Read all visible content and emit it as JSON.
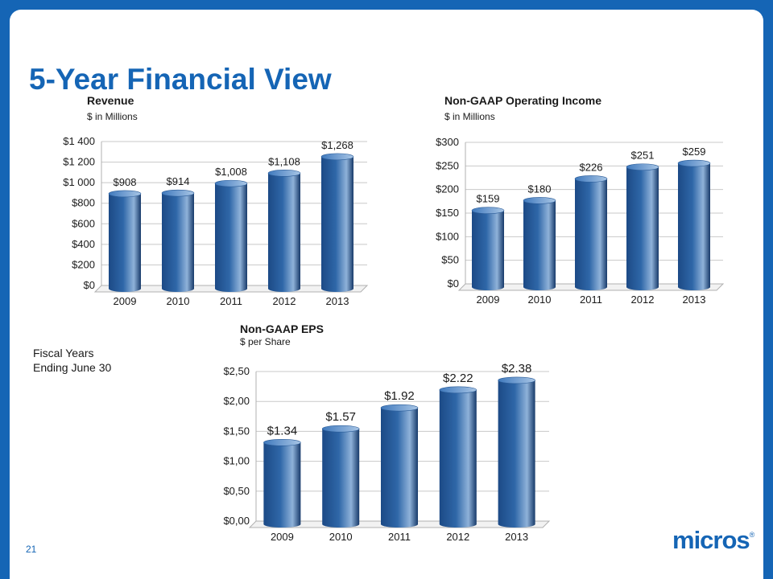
{
  "slide": {
    "title": "5-Year Financial View",
    "note_line1": "Fiscal Years",
    "note_line2": "Ending June 30",
    "page_number": "21",
    "logo": "micros",
    "logo_mark": "®"
  },
  "colors": {
    "brand_blue": "#1565b5",
    "bar_dark": "#173a6a",
    "bar_light": "#8fb2d9"
  },
  "chart_data": [
    {
      "id": "revenue",
      "type": "bar",
      "title": "Revenue",
      "subtitle": "$ in Millions",
      "categories": [
        "2009",
        "2010",
        "2011",
        "2012",
        "2013"
      ],
      "values": [
        908,
        914,
        1008,
        1108,
        1268
      ],
      "data_labels": [
        "$908",
        "$914",
        "$1,008",
        "$1,108",
        "$1,268"
      ],
      "ylim": [
        0,
        1400
      ],
      "yticks": [
        0,
        200,
        400,
        600,
        800,
        1000,
        1200,
        1400
      ],
      "ytick_labels": [
        "$0",
        "$200",
        "$400",
        "$600",
        "$800",
        "$1 000",
        "$1 200",
        "$1 400"
      ],
      "grid": true,
      "legend": "none"
    },
    {
      "id": "operating-income",
      "type": "bar",
      "title": "Non-GAAP Operating Income",
      "subtitle": "$ in Millions",
      "categories": [
        "2009",
        "2010",
        "2011",
        "2012",
        "2013"
      ],
      "values": [
        159,
        180,
        226,
        251,
        259
      ],
      "data_labels": [
        "$159",
        "$180",
        "$226",
        "$251",
        "$259"
      ],
      "ylim": [
        0,
        300
      ],
      "yticks": [
        0,
        50,
        100,
        150,
        200,
        250,
        300
      ],
      "ytick_labels": [
        "$0",
        "$50",
        "$100",
        "$150",
        "$200",
        "$250",
        "$300"
      ],
      "grid": true,
      "legend": "none"
    },
    {
      "id": "eps",
      "type": "bar",
      "title": "Non-GAAP EPS",
      "subtitle": "$ per Share",
      "categories": [
        "2009",
        "2010",
        "2011",
        "2012",
        "2013"
      ],
      "values": [
        1.34,
        1.57,
        1.92,
        2.22,
        2.38
      ],
      "data_labels": [
        "$1.34",
        "$1.57",
        "$1.92",
        "$2.22",
        "$2.38"
      ],
      "ylim": [
        0,
        2.5
      ],
      "yticks": [
        0,
        0.5,
        1.0,
        1.5,
        2.0,
        2.5
      ],
      "ytick_labels": [
        "$0,00",
        "$0,50",
        "$1,00",
        "$1,50",
        "$2,00",
        "$2,50"
      ],
      "grid": true,
      "legend": "none"
    }
  ]
}
